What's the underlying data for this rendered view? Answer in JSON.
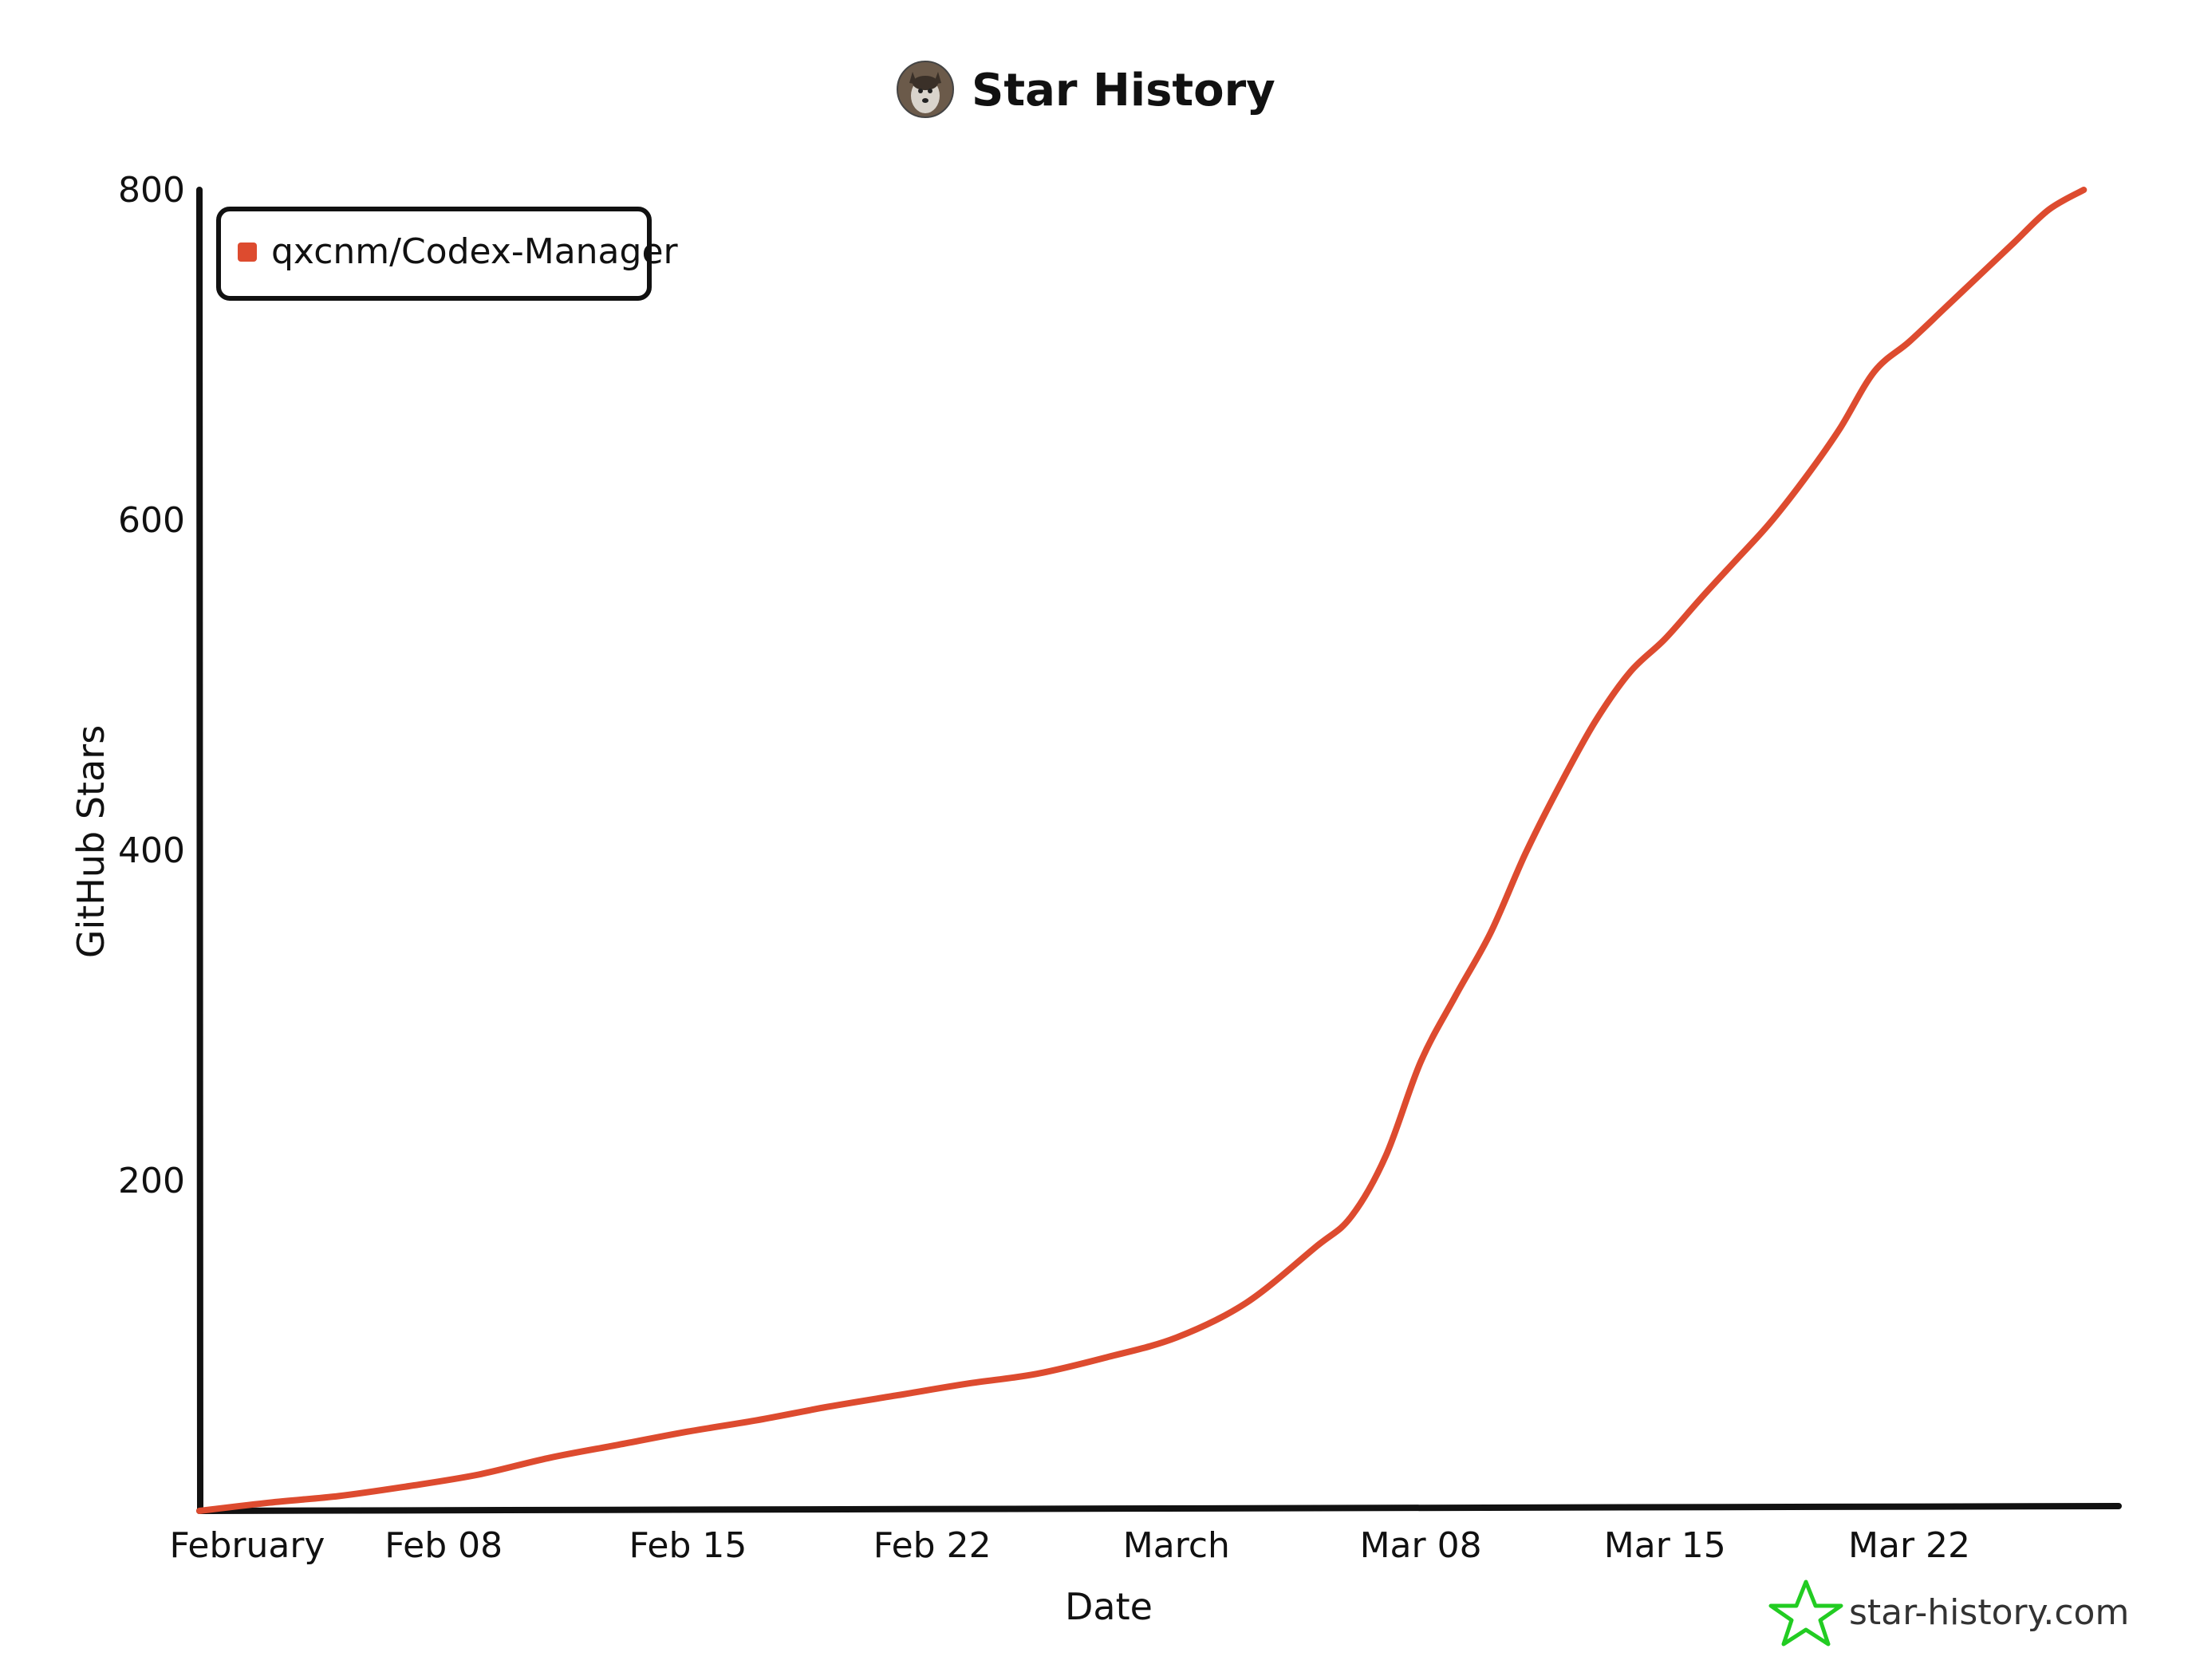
{
  "header": {
    "title": "Star History",
    "avatar_icon": "husky-avatar-icon"
  },
  "watermark": {
    "text": "star-history.com",
    "icon": "star-outline-icon",
    "color": "#22cc22"
  },
  "chart_data": {
    "type": "line",
    "title": "Star History",
    "xlabel": "Date",
    "ylabel": "GitHub Stars",
    "xlim": [
      "2025-02-01",
      "2025-03-28"
    ],
    "ylim": [
      0,
      800
    ],
    "x_tick_labels": [
      {
        "date": "2025-02-01",
        "label": "February"
      },
      {
        "date": "2025-02-08",
        "label": "Feb 08"
      },
      {
        "date": "2025-02-15",
        "label": "Feb 15"
      },
      {
        "date": "2025-02-22",
        "label": "Feb 22"
      },
      {
        "date": "2025-03-01",
        "label": "March"
      },
      {
        "date": "2025-03-08",
        "label": "Mar 08"
      },
      {
        "date": "2025-03-15",
        "label": "Mar 15"
      },
      {
        "date": "2025-03-22",
        "label": "Mar 22"
      }
    ],
    "y_ticks": [
      200,
      400,
      600,
      800
    ],
    "grid": false,
    "legend_position": "top-left",
    "series": [
      {
        "name": "qxcnm/Codex-Manager",
        "color": "#dd4b2f",
        "points": [
          {
            "x": "2025-02-01",
            "y": 0
          },
          {
            "x": "2025-02-03",
            "y": 5
          },
          {
            "x": "2025-02-05",
            "y": 9
          },
          {
            "x": "2025-02-07",
            "y": 15
          },
          {
            "x": "2025-02-09",
            "y": 22
          },
          {
            "x": "2025-02-11",
            "y": 32
          },
          {
            "x": "2025-02-13",
            "y": 40
          },
          {
            "x": "2025-02-15",
            "y": 48
          },
          {
            "x": "2025-02-17",
            "y": 55
          },
          {
            "x": "2025-02-19",
            "y": 63
          },
          {
            "x": "2025-02-21",
            "y": 70
          },
          {
            "x": "2025-02-23",
            "y": 77
          },
          {
            "x": "2025-02-25",
            "y": 83
          },
          {
            "x": "2025-02-27",
            "y": 93
          },
          {
            "x": "2025-03-01",
            "y": 105
          },
          {
            "x": "2025-03-03",
            "y": 126
          },
          {
            "x": "2025-03-05",
            "y": 160
          },
          {
            "x": "2025-03-06",
            "y": 178
          },
          {
            "x": "2025-03-07",
            "y": 215
          },
          {
            "x": "2025-03-08",
            "y": 272
          },
          {
            "x": "2025-03-09",
            "y": 312
          },
          {
            "x": "2025-03-10",
            "y": 350
          },
          {
            "x": "2025-03-11",
            "y": 398
          },
          {
            "x": "2025-03-12",
            "y": 440
          },
          {
            "x": "2025-03-13",
            "y": 478
          },
          {
            "x": "2025-03-14",
            "y": 508
          },
          {
            "x": "2025-03-15",
            "y": 528
          },
          {
            "x": "2025-03-16",
            "y": 552
          },
          {
            "x": "2025-03-17",
            "y": 575
          },
          {
            "x": "2025-03-18",
            "y": 598
          },
          {
            "x": "2025-03-19",
            "y": 625
          },
          {
            "x": "2025-03-20",
            "y": 655
          },
          {
            "x": "2025-03-21",
            "y": 690
          },
          {
            "x": "2025-03-22",
            "y": 708
          },
          {
            "x": "2025-03-23",
            "y": 728
          },
          {
            "x": "2025-03-24",
            "y": 748
          },
          {
            "x": "2025-03-25",
            "y": 768
          },
          {
            "x": "2025-03-26",
            "y": 788
          },
          {
            "x": "2025-03-27",
            "y": 800
          }
        ]
      }
    ]
  }
}
